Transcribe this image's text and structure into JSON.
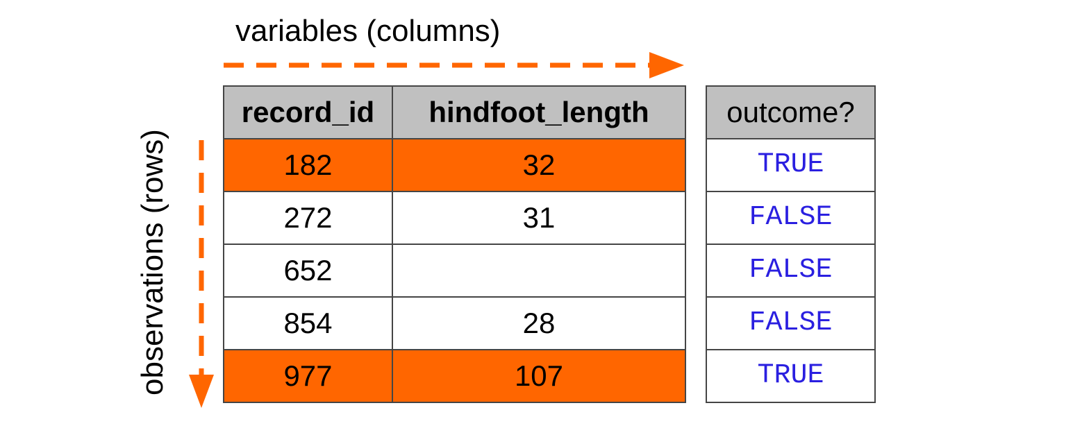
{
  "labels": {
    "columns_axis": "variables (columns)",
    "rows_axis": "observations (rows)"
  },
  "colors": {
    "arrow": "#ff6600",
    "highlight": "#ff6600",
    "header": "#c0c0c0",
    "boolean_text": "#2a1fe0"
  },
  "table": {
    "headers": [
      "record_id",
      "hindfoot_length"
    ],
    "rows": [
      {
        "record_id": "182",
        "hindfoot_length": "32",
        "highlighted": true
      },
      {
        "record_id": "272",
        "hindfoot_length": "31",
        "highlighted": false
      },
      {
        "record_id": "652",
        "hindfoot_length": "",
        "highlighted": false
      },
      {
        "record_id": "854",
        "hindfoot_length": "28",
        "highlighted": false
      },
      {
        "record_id": "977",
        "hindfoot_length": "107",
        "highlighted": true
      }
    ]
  },
  "outcome": {
    "header": "outcome?",
    "values": [
      "TRUE",
      "FALSE",
      "FALSE",
      "FALSE",
      "TRUE"
    ]
  }
}
